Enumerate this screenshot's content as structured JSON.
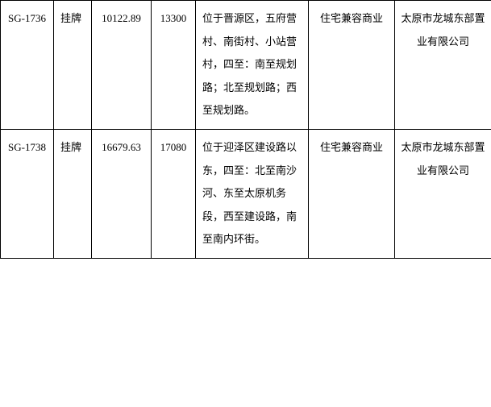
{
  "rows": [
    {
      "id": "SG-1736",
      "type": "挂牌",
      "area": "10122.89",
      "price": "13300",
      "location": "位于晋源区，五府营村、南街村、小站营村，四至：南至规划路；北至规划路；西至规划路。",
      "usage": "住宅兼容商业",
      "company": "太原市龙城东部置业有限公司"
    },
    {
      "id": "SG-1738",
      "type": "挂牌",
      "area": "16679.63",
      "price": "17080",
      "location": "位于迎泽区建设路以东，四至：北至南沙河、东至太原机务段，西至建设路，南至南内环街。",
      "usage": "住宅兼容商业",
      "company": "太原市龙城东部置业有限公司"
    }
  ]
}
